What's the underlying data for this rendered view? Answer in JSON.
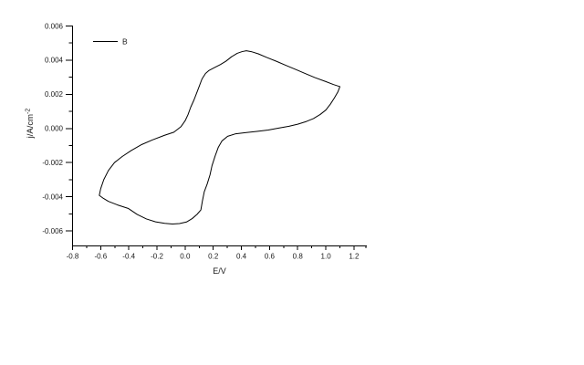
{
  "page": {
    "background_color": "#ffffff",
    "line_color": "#000000"
  },
  "chart_data": {
    "type": "line",
    "subtype": "cyclic-voltammogram",
    "xlabel": "E/V",
    "ylabel": "j/A/cm⁻²",
    "ylabel_main": "j/A/cm",
    "ylabel_sup": "-2",
    "grid": false,
    "legend_position": "top-left-inside",
    "legend": {
      "label": "B"
    },
    "x_range": [
      -0.8,
      1.288
    ],
    "y_range": [
      -0.00688,
      0.006
    ],
    "x_major_ticks": [
      -0.8,
      -0.6,
      -0.4,
      -0.2,
      0.0,
      0.2,
      0.4,
      0.6,
      0.8,
      1.0,
      1.2
    ],
    "x_major_labels": [
      "-0.8",
      "-0.6",
      "-0.4",
      "-0.2",
      "0.0",
      "0.2",
      "0.4",
      "0.6",
      "0.8",
      "1.0",
      "1.2"
    ],
    "x_minor_ticks": [
      -0.7,
      -0.5,
      -0.3,
      -0.1,
      0.1,
      0.3,
      0.5,
      0.7,
      0.9,
      1.1,
      1.285
    ],
    "y_major_ticks": [
      0.006,
      0.004,
      0.002,
      0.0,
      -0.002,
      -0.004,
      -0.006
    ],
    "y_major_labels": [
      "0.006",
      "0.004",
      "0.002",
      "0.000",
      "-0.002",
      "-0.004",
      "-0.006"
    ],
    "y_minor_ticks": [
      0.005,
      0.003,
      0.001,
      -0.001,
      -0.003,
      -0.005
    ],
    "series": [
      {
        "name": "B",
        "color": "#000000",
        "closed_loop": true,
        "points": [
          [
            -0.61,
            -0.00392
          ],
          [
            -0.6,
            -0.00353
          ],
          [
            -0.578,
            -0.003
          ],
          [
            -0.545,
            -0.00246
          ],
          [
            -0.502,
            -0.002
          ],
          [
            -0.448,
            -0.00165
          ],
          [
            -0.384,
            -0.0013
          ],
          [
            -0.308,
            -0.00094
          ],
          [
            -0.232,
            -0.00067
          ],
          [
            -0.146,
            -0.0004
          ],
          [
            -0.08,
            -0.00022
          ],
          [
            -0.03,
            0.0001
          ],
          [
            0.0,
            0.00045
          ],
          [
            0.02,
            0.0008
          ],
          [
            0.04,
            0.00125
          ],
          [
            0.062,
            0.00165
          ],
          [
            0.088,
            0.0022
          ],
          [
            0.12,
            0.0029
          ],
          [
            0.145,
            0.00322
          ],
          [
            0.17,
            0.0034
          ],
          [
            0.21,
            0.00357
          ],
          [
            0.25,
            0.00374
          ],
          [
            0.29,
            0.00394
          ],
          [
            0.33,
            0.0042
          ],
          [
            0.37,
            0.0044
          ],
          [
            0.405,
            0.0045
          ],
          [
            0.435,
            0.00455
          ],
          [
            0.47,
            0.0045
          ],
          [
            0.52,
            0.00437
          ],
          [
            0.58,
            0.00416
          ],
          [
            0.65,
            0.00393
          ],
          [
            0.715,
            0.0037
          ],
          [
            0.785,
            0.00346
          ],
          [
            0.855,
            0.00321
          ],
          [
            0.925,
            0.00297
          ],
          [
            0.995,
            0.00276
          ],
          [
            1.055,
            0.00257
          ],
          [
            1.1,
            0.00245
          ],
          [
            1.085,
            0.00213
          ],
          [
            1.06,
            0.00178
          ],
          [
            1.032,
            0.00142
          ],
          [
            1.0,
            0.00108
          ],
          [
            0.96,
            0.00082
          ],
          [
            0.912,
            0.00058
          ],
          [
            0.862,
            0.00041
          ],
          [
            0.8,
            0.00025
          ],
          [
            0.738,
            0.00013
          ],
          [
            0.665,
            2e-05
          ],
          [
            0.59,
            -9e-05
          ],
          [
            0.51,
            -0.00017
          ],
          [
            0.435,
            -0.00024
          ],
          [
            0.36,
            -0.00031
          ],
          [
            0.302,
            -0.00046
          ],
          [
            0.262,
            -0.00073
          ],
          [
            0.236,
            -0.0011
          ],
          [
            0.213,
            -0.00162
          ],
          [
            0.191,
            -0.00218
          ],
          [
            0.177,
            -0.00271
          ],
          [
            0.157,
            -0.00325
          ],
          [
            0.136,
            -0.00371
          ],
          [
            0.123,
            -0.00424
          ],
          [
            0.112,
            -0.00477
          ],
          [
            0.085,
            -0.00503
          ],
          [
            0.05,
            -0.00528
          ],
          [
            0.01,
            -0.00548
          ],
          [
            -0.04,
            -0.00557
          ],
          [
            -0.09,
            -0.0056
          ],
          [
            -0.145,
            -0.00556
          ],
          [
            -0.21,
            -0.00547
          ],
          [
            -0.275,
            -0.0053
          ],
          [
            -0.34,
            -0.00504
          ],
          [
            -0.405,
            -0.00468
          ],
          [
            -0.48,
            -0.00448
          ],
          [
            -0.545,
            -0.00427
          ],
          [
            -0.58,
            -0.0041
          ],
          [
            -0.61,
            -0.00392
          ]
        ]
      }
    ]
  }
}
